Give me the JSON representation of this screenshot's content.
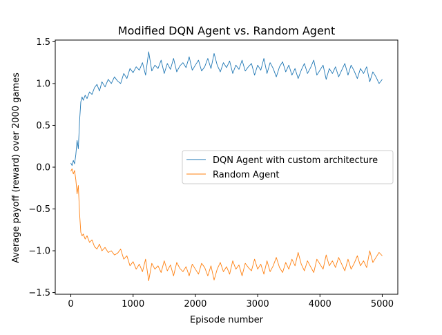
{
  "chart_data": {
    "type": "line",
    "title": "Modified DQN Agent vs. Random Agent",
    "xlabel": "Episode number",
    "ylabel": "Average payoff (reward) over 2000 games",
    "xlim": [
      -250,
      5250
    ],
    "ylim": [
      -1.52,
      1.52
    ],
    "xticks": [
      0,
      1000,
      2000,
      3000,
      4000,
      5000
    ],
    "xtick_labels": [
      "0",
      "1000",
      "2000",
      "3000",
      "4000",
      "5000"
    ],
    "yticks": [
      -1.5,
      -1.0,
      -0.5,
      0.0,
      0.5,
      1.0,
      1.5
    ],
    "ytick_labels": [
      "−1.5",
      "−1.0",
      "−0.5",
      "0.0",
      "0.5",
      "1.0",
      "1.5"
    ],
    "grid": false,
    "legend_position": "center-right",
    "series": [
      {
        "name": "DQN Agent with custom architecture",
        "color": "#1f77b4",
        "x": [
          0,
          20,
          40,
          60,
          80,
          100,
          120,
          140,
          160,
          180,
          200,
          230,
          260,
          300,
          340,
          380,
          420,
          460,
          500,
          550,
          600,
          650,
          700,
          750,
          800,
          850,
          900,
          950,
          1000,
          1050,
          1100,
          1150,
          1200,
          1250,
          1300,
          1350,
          1400,
          1450,
          1500,
          1550,
          1600,
          1650,
          1700,
          1750,
          1800,
          1850,
          1900,
          1950,
          2000,
          2050,
          2100,
          2150,
          2200,
          2250,
          2300,
          2350,
          2400,
          2450,
          2500,
          2550,
          2600,
          2650,
          2700,
          2750,
          2800,
          2850,
          2900,
          2950,
          3000,
          3050,
          3100,
          3150,
          3200,
          3250,
          3300,
          3350,
          3400,
          3450,
          3500,
          3550,
          3600,
          3650,
          3700,
          3750,
          3800,
          3850,
          3900,
          3950,
          4000,
          4050,
          4100,
          4150,
          4200,
          4250,
          4300,
          4350,
          4400,
          4450,
          4500,
          4550,
          4600,
          4650,
          4700,
          4750,
          4800,
          4850,
          4900,
          4950,
          5000
        ],
        "values": [
          0.05,
          0.02,
          0.08,
          0.04,
          0.15,
          0.32,
          0.22,
          0.55,
          0.78,
          0.84,
          0.8,
          0.86,
          0.82,
          0.9,
          0.87,
          0.95,
          0.99,
          0.91,
          1.02,
          0.96,
          1.05,
          1.0,
          1.08,
          1.03,
          1.0,
          1.12,
          1.06,
          1.18,
          1.13,
          1.2,
          1.16,
          1.25,
          1.1,
          1.38,
          1.15,
          1.22,
          1.18,
          1.28,
          1.12,
          1.24,
          1.17,
          1.3,
          1.14,
          1.21,
          1.25,
          1.19,
          1.32,
          1.16,
          1.22,
          1.28,
          1.15,
          1.2,
          1.3,
          1.18,
          1.36,
          1.22,
          1.14,
          1.25,
          1.19,
          1.27,
          1.12,
          1.22,
          1.17,
          1.28,
          1.15,
          1.2,
          1.24,
          1.1,
          1.22,
          1.16,
          1.3,
          1.12,
          1.25,
          1.18,
          1.08,
          1.2,
          1.26,
          1.14,
          1.22,
          1.1,
          1.18,
          1.06,
          1.16,
          1.24,
          1.12,
          1.19,
          1.28,
          1.1,
          1.16,
          1.22,
          1.05,
          1.18,
          1.12,
          1.2,
          1.08,
          1.16,
          1.24,
          1.1,
          1.22,
          1.15,
          1.06,
          1.18,
          1.12,
          1.2,
          1.02,
          1.14,
          1.08,
          1.0,
          1.05
        ]
      },
      {
        "name": "Random Agent",
        "color": "#ff7f0e",
        "x": [
          0,
          20,
          40,
          60,
          80,
          100,
          120,
          140,
          160,
          180,
          200,
          230,
          260,
          300,
          340,
          380,
          420,
          460,
          500,
          550,
          600,
          650,
          700,
          750,
          800,
          850,
          900,
          950,
          1000,
          1050,
          1100,
          1150,
          1200,
          1250,
          1300,
          1350,
          1400,
          1450,
          1500,
          1550,
          1600,
          1650,
          1700,
          1750,
          1800,
          1850,
          1900,
          1950,
          2000,
          2050,
          2100,
          2150,
          2200,
          2250,
          2300,
          2350,
          2400,
          2450,
          2500,
          2550,
          2600,
          2650,
          2700,
          2750,
          2800,
          2850,
          2900,
          2950,
          3000,
          3050,
          3100,
          3150,
          3200,
          3250,
          3300,
          3350,
          3400,
          3450,
          3500,
          3550,
          3600,
          3650,
          3700,
          3750,
          3800,
          3850,
          3900,
          3950,
          4000,
          4050,
          4100,
          4150,
          4200,
          4250,
          4300,
          4350,
          4400,
          4450,
          4500,
          4550,
          4600,
          4650,
          4700,
          4750,
          4800,
          4850,
          4900,
          4950,
          5000
        ],
        "values": [
          -0.05,
          -0.02,
          -0.08,
          -0.04,
          -0.15,
          -0.32,
          -0.22,
          -0.55,
          -0.78,
          -0.82,
          -0.8,
          -0.86,
          -0.82,
          -0.9,
          -0.87,
          -0.95,
          -0.98,
          -0.92,
          -1.0,
          -0.96,
          -1.02,
          -1.0,
          -1.05,
          -1.03,
          -0.98,
          -1.1,
          -1.06,
          -1.18,
          -1.13,
          -1.22,
          -1.16,
          -1.25,
          -1.1,
          -1.36,
          -1.15,
          -1.22,
          -1.18,
          -1.26,
          -1.12,
          -1.24,
          -1.17,
          -1.3,
          -1.14,
          -1.21,
          -1.25,
          -1.19,
          -1.3,
          -1.16,
          -1.22,
          -1.28,
          -1.15,
          -1.2,
          -1.3,
          -1.18,
          -1.35,
          -1.22,
          -1.14,
          -1.25,
          -1.19,
          -1.28,
          -1.12,
          -1.22,
          -1.17,
          -1.3,
          -1.15,
          -1.2,
          -1.24,
          -1.1,
          -1.22,
          -1.16,
          -1.28,
          -1.12,
          -1.25,
          -1.18,
          -1.08,
          -1.2,
          -1.26,
          -1.14,
          -1.22,
          -1.1,
          -1.18,
          -1.02,
          -1.16,
          -1.24,
          -1.12,
          -1.19,
          -1.26,
          -1.1,
          -1.16,
          -1.22,
          -1.05,
          -1.18,
          -1.12,
          -1.2,
          -1.08,
          -1.16,
          -1.24,
          -1.1,
          -1.22,
          -1.15,
          -1.06,
          -1.18,
          -1.12,
          -1.2,
          -1.0,
          -1.14,
          -1.08,
          -1.02,
          -1.06
        ]
      }
    ]
  }
}
